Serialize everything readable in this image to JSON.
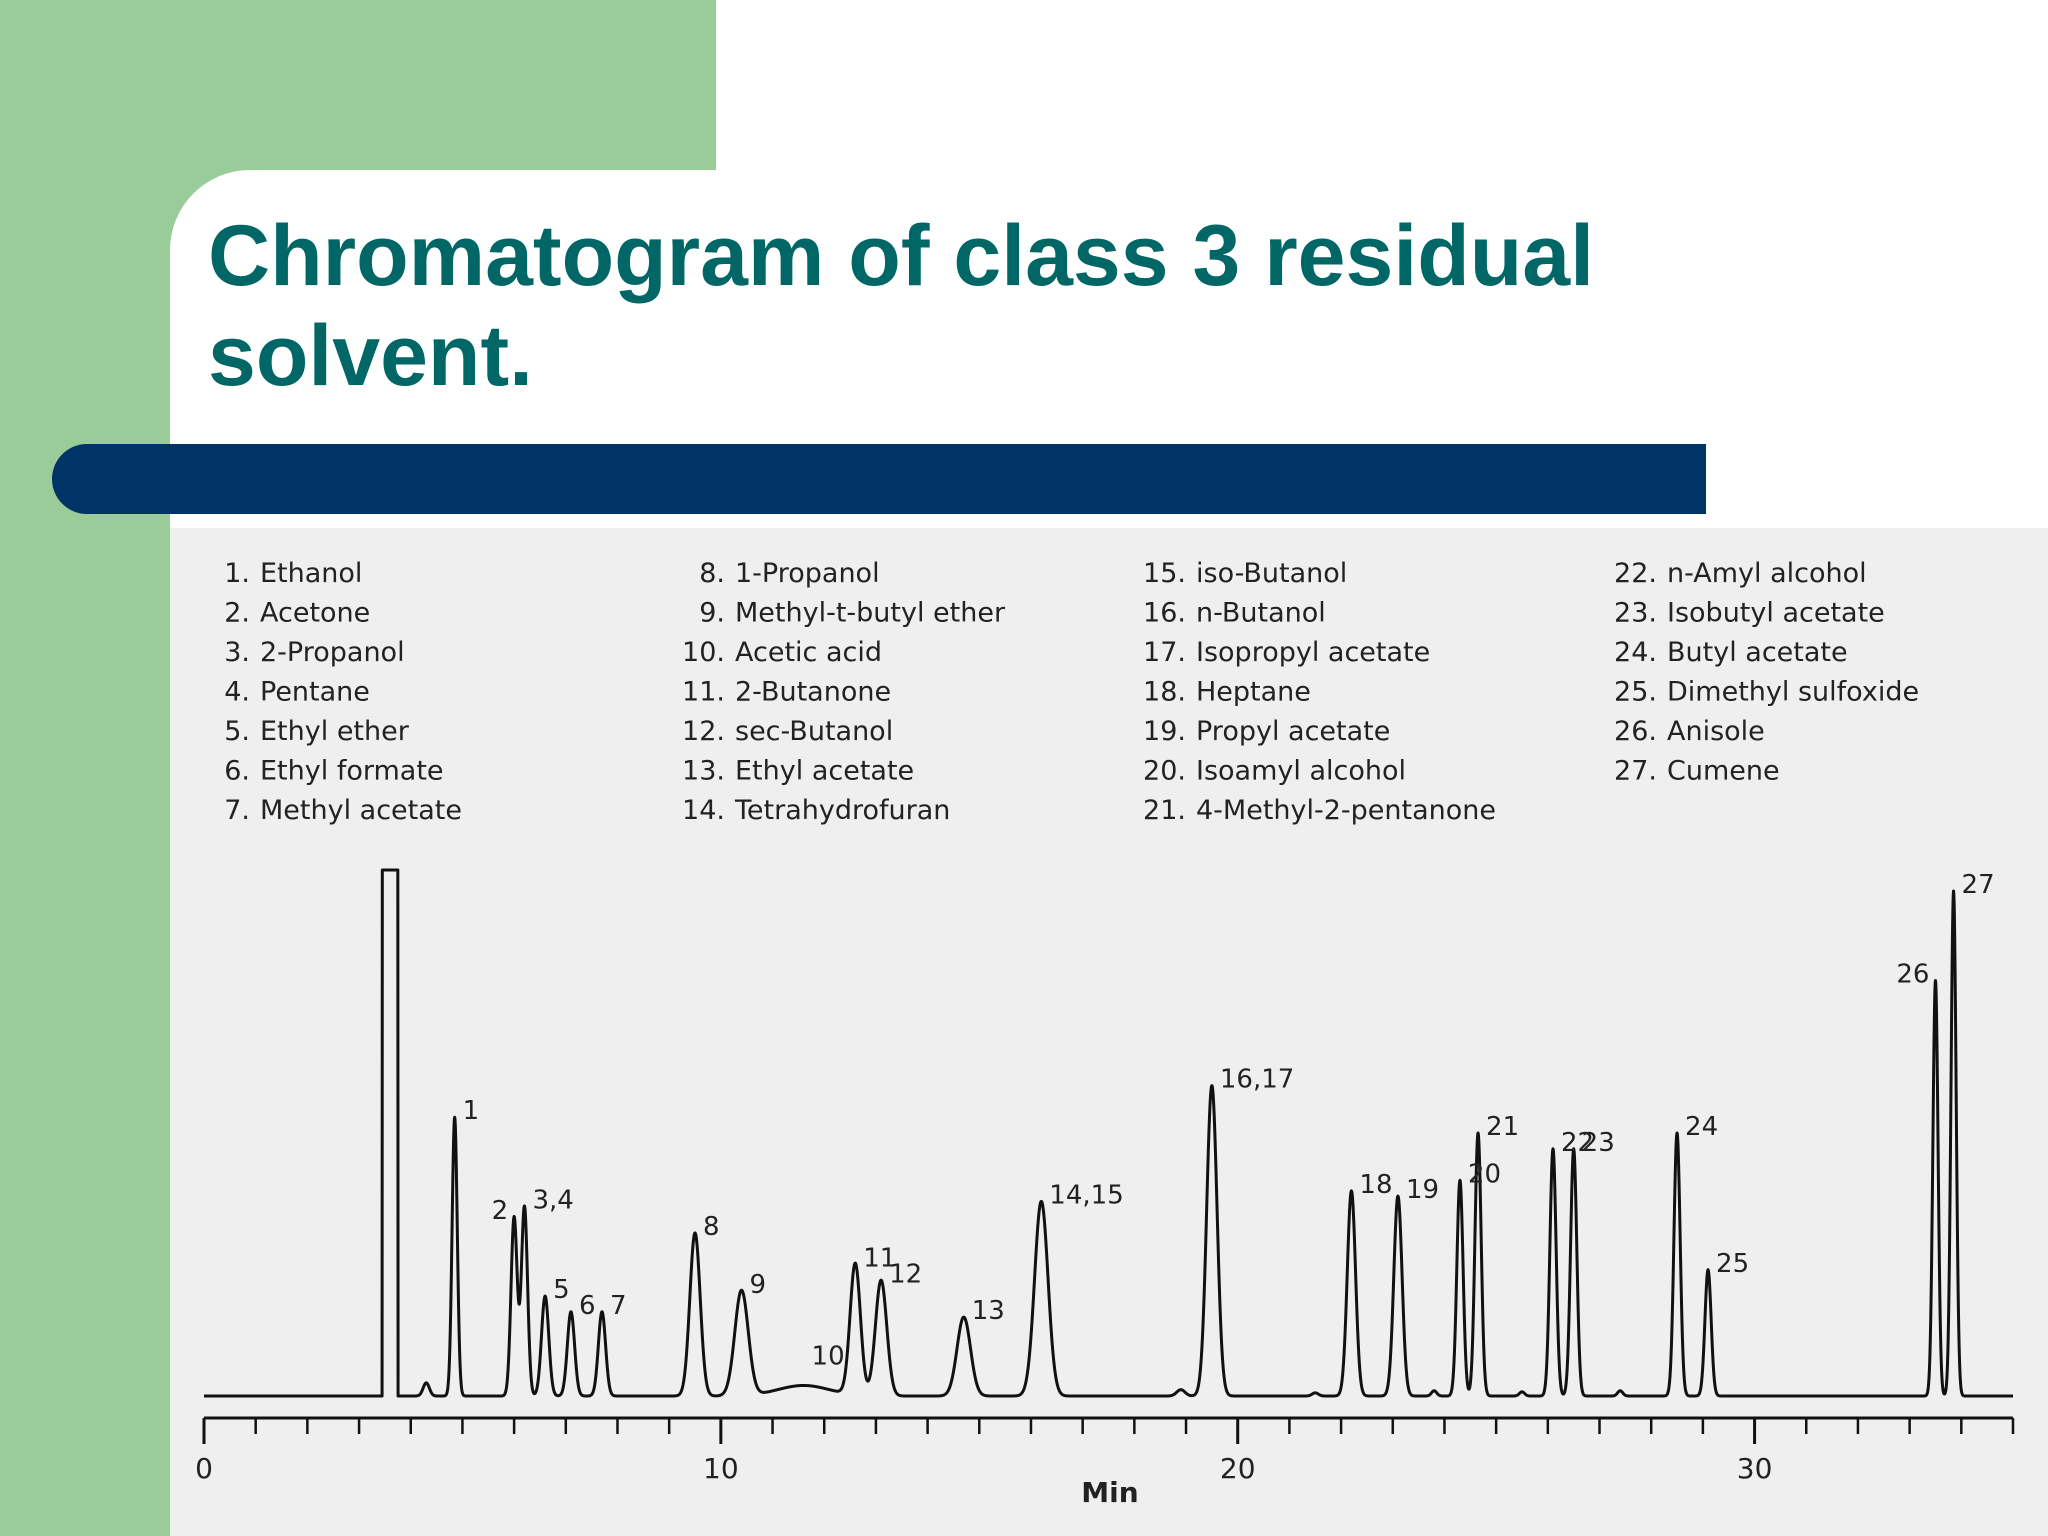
{
  "slide": {
    "title": "Chromatogram of class 3 residual solvent.",
    "colors": {
      "title": "#006666",
      "bar": "#003366",
      "green": "#99cc99",
      "chart_bg": "#efeff0"
    }
  },
  "chart_data": {
    "type": "line",
    "title": "",
    "xlabel": "Min",
    "ylabel": "",
    "xlim": [
      0,
      35
    ],
    "xticks": [
      0,
      10,
      20,
      30
    ],
    "xtick_labels": [
      "0",
      "10",
      "20",
      "30"
    ],
    "minor_tick_step": 1,
    "grid": false,
    "legend_position": "top",
    "legend_columns": [
      [
        {
          "num": "1.",
          "name": "Ethanol"
        },
        {
          "num": "2.",
          "name": "Acetone"
        },
        {
          "num": "3.",
          "name": "2-Propanol"
        },
        {
          "num": "4.",
          "name": "Pentane"
        },
        {
          "num": "5.",
          "name": "Ethyl ether"
        },
        {
          "num": "6.",
          "name": "Ethyl formate"
        },
        {
          "num": "7.",
          "name": "Methyl acetate"
        }
      ],
      [
        {
          "num": "8.",
          "name": "1-Propanol"
        },
        {
          "num": "9.",
          "name": "Methyl-t-butyl ether"
        },
        {
          "num": "10.",
          "name": "Acetic acid"
        },
        {
          "num": "11.",
          "name": "2-Butanone"
        },
        {
          "num": "12.",
          "name": "sec-Butanol"
        },
        {
          "num": "13.",
          "name": "Ethyl acetate"
        },
        {
          "num": "14.",
          "name": "Tetrahydrofuran"
        }
      ],
      [
        {
          "num": "15.",
          "name": "iso-Butanol"
        },
        {
          "num": "16.",
          "name": "n-Butanol"
        },
        {
          "num": "17.",
          "name": "Isopropyl acetate"
        },
        {
          "num": "18.",
          "name": "Heptane"
        },
        {
          "num": "19.",
          "name": "Propyl acetate"
        },
        {
          "num": "20.",
          "name": "Isoamyl alcohol"
        },
        {
          "num": "21.",
          "name": "4-Methyl-2-pentanone"
        }
      ],
      [
        {
          "num": "22.",
          "name": "n-Amyl alcohol"
        },
        {
          "num": "23.",
          "name": "Isobutyl acetate"
        },
        {
          "num": "24.",
          "name": "Butyl acetate"
        },
        {
          "num": "25.",
          "name": "Dimethyl sulfoxide"
        },
        {
          "num": "26.",
          "name": "Anisole"
        },
        {
          "num": "27.",
          "name": "Cumene"
        }
      ]
    ],
    "peaks": [
      {
        "label": "",
        "x": 3.6,
        "height": 1.0,
        "width": 0.3,
        "flat_top": true
      },
      {
        "label": "",
        "x": 4.3,
        "height": 0.025,
        "width": 0.06
      },
      {
        "label": "1",
        "x": 4.85,
        "height": 0.53,
        "width": 0.05
      },
      {
        "label": "2",
        "x": 6.0,
        "height": 0.34,
        "width": 0.06
      },
      {
        "label": "3,4",
        "x": 6.2,
        "height": 0.36,
        "width": 0.06
      },
      {
        "label": "5",
        "x": 6.6,
        "height": 0.19,
        "width": 0.07
      },
      {
        "label": "6",
        "x": 7.1,
        "height": 0.16,
        "width": 0.07
      },
      {
        "label": "7",
        "x": 7.7,
        "height": 0.16,
        "width": 0.07
      },
      {
        "label": "8",
        "x": 9.5,
        "height": 0.31,
        "width": 0.1
      },
      {
        "label": "9",
        "x": 10.4,
        "height": 0.2,
        "width": 0.13
      },
      {
        "label": "10",
        "x": 11.6,
        "height": 0.02,
        "width": 0.5
      },
      {
        "label": "11",
        "x": 12.6,
        "height": 0.25,
        "width": 0.1
      },
      {
        "label": "12",
        "x": 13.1,
        "height": 0.22,
        "width": 0.11
      },
      {
        "label": "13",
        "x": 14.7,
        "height": 0.15,
        "width": 0.13
      },
      {
        "label": "14,15",
        "x": 16.2,
        "height": 0.37,
        "width": 0.13
      },
      {
        "label": "",
        "x": 18.9,
        "height": 0.012,
        "width": 0.08
      },
      {
        "label": "16,17",
        "x": 19.5,
        "height": 0.59,
        "width": 0.1
      },
      {
        "label": "",
        "x": 21.5,
        "height": 0.006,
        "width": 0.06
      },
      {
        "label": "18",
        "x": 22.2,
        "height": 0.39,
        "width": 0.08
      },
      {
        "label": "19",
        "x": 23.1,
        "height": 0.38,
        "width": 0.08
      },
      {
        "label": "",
        "x": 23.8,
        "height": 0.01,
        "width": 0.05
      },
      {
        "label": "20",
        "x": 24.3,
        "height": 0.41,
        "width": 0.06
      },
      {
        "label": "21",
        "x": 24.65,
        "height": 0.5,
        "width": 0.06
      },
      {
        "label": "",
        "x": 25.5,
        "height": 0.008,
        "width": 0.05
      },
      {
        "label": "22",
        "x": 26.1,
        "height": 0.47,
        "width": 0.06
      },
      {
        "label": "23",
        "x": 26.5,
        "height": 0.47,
        "width": 0.06
      },
      {
        "label": "",
        "x": 27.4,
        "height": 0.01,
        "width": 0.05
      },
      {
        "label": "24",
        "x": 28.5,
        "height": 0.5,
        "width": 0.06
      },
      {
        "label": "25",
        "x": 29.1,
        "height": 0.24,
        "width": 0.06
      },
      {
        "label": "26",
        "x": 33.5,
        "height": 0.79,
        "width": 0.05
      },
      {
        "label": "27",
        "x": 33.85,
        "height": 0.96,
        "width": 0.05
      }
    ]
  }
}
